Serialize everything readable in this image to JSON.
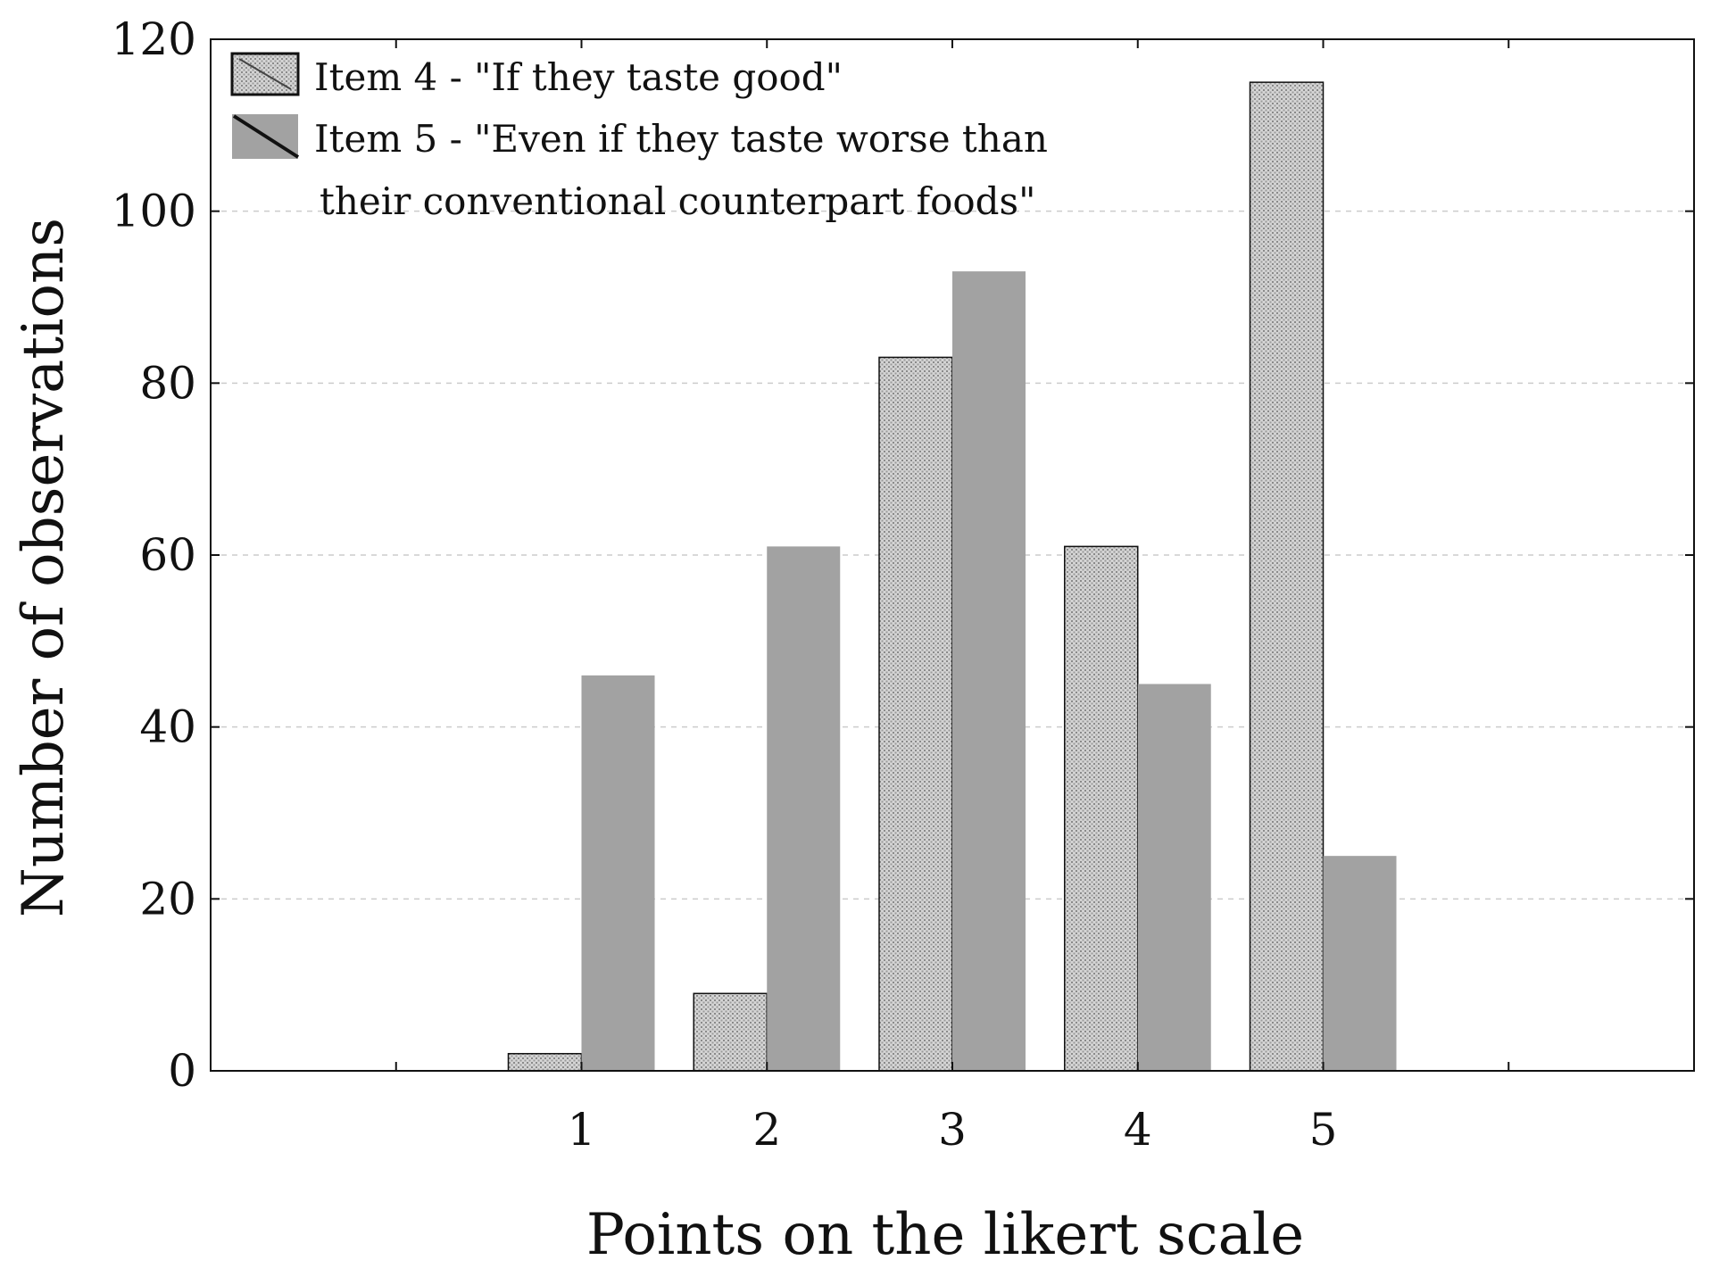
{
  "chart_data": {
    "type": "bar",
    "categories": [
      "1",
      "2",
      "3",
      "4",
      "5"
    ],
    "series": [
      {
        "name": "Item 4 - \"If they taste good\"",
        "values": [
          2,
          9,
          83,
          61,
          115
        ]
      },
      {
        "name": "Item 5 - \"Even if they taste worse than their conventional counterpart foods\"",
        "values": [
          46,
          61,
          93,
          45,
          25
        ]
      }
    ],
    "legend_lines": [
      [
        "Item 4 - \"If they taste good\""
      ],
      [
        "Item 5 - \"Even if they taste worse than",
        "their conventional counterpart foods\""
      ]
    ],
    "xlabel": "Points on the likert scale",
    "ylabel": "Number of observations",
    "ylim": [
      0,
      120
    ],
    "yticks": [
      0,
      20,
      40,
      60,
      80,
      100,
      120
    ],
    "grid": "horizontal-dashed",
    "legend_position": "top-left",
    "colors": {
      "item4_fill": "#d4d4d4",
      "item4_dots": "#8a8a8a",
      "item5_fill": "#a2a2a2",
      "stroke": "#111111",
      "grid": "#cccccc"
    }
  }
}
